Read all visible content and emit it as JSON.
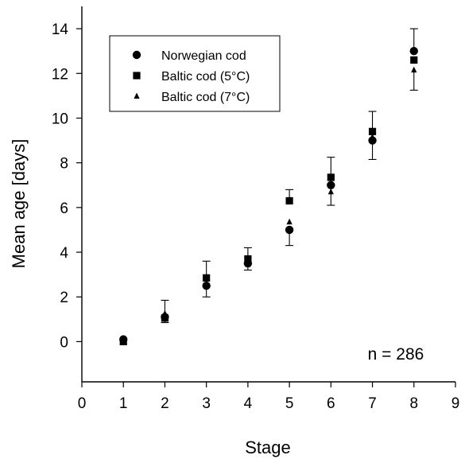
{
  "chart_data": {
    "type": "scatter",
    "xlabel": "Stage",
    "ylabel": "Mean age [days]",
    "xlim": [
      0,
      9
    ],
    "ylim": [
      -1.8,
      15
    ],
    "xticks": [
      0,
      1,
      2,
      3,
      4,
      5,
      6,
      7,
      8,
      9
    ],
    "yticks": [
      0,
      2,
      4,
      6,
      8,
      10,
      12,
      14
    ],
    "grid": false,
    "legend_position": "top-left",
    "annotation": "n = 286",
    "series": [
      {
        "name": "Norwegian cod",
        "marker": "circle",
        "x": [
          1,
          2,
          3,
          4,
          5,
          6,
          7,
          8
        ],
        "y": [
          0.1,
          1.1,
          2.5,
          3.5,
          5.0,
          7.0,
          9.0,
          13.0
        ],
        "err_low": [
          null,
          null,
          0.5,
          0.3,
          0.7,
          null,
          0.85,
          null
        ],
        "err_high": [
          null,
          null,
          null,
          null,
          null,
          null,
          null,
          1.0
        ]
      },
      {
        "name": "Baltic cod (5°C)",
        "marker": "square",
        "x": [
          1,
          2,
          3,
          4,
          5,
          6,
          7,
          8
        ],
        "y": [
          0.0,
          1.05,
          2.85,
          3.7,
          6.3,
          7.35,
          9.4,
          12.6
        ],
        "err_low": [
          null,
          null,
          null,
          null,
          null,
          null,
          null,
          null
        ],
        "err_high": [
          null,
          null,
          0.75,
          0.5,
          0.5,
          0.9,
          0.9,
          null
        ]
      },
      {
        "name": "Baltic cod (7°C)",
        "marker": "triangle",
        "x": [
          1,
          2,
          3,
          4,
          5,
          6,
          7,
          8
        ],
        "y": [
          0.05,
          1.25,
          2.6,
          3.45,
          5.35,
          6.7,
          9.15,
          12.15
        ],
        "err_low": [
          null,
          0.4,
          null,
          null,
          null,
          0.6,
          null,
          0.9
        ],
        "err_high": [
          null,
          0.6,
          null,
          null,
          null,
          null,
          null,
          null
        ]
      }
    ]
  }
}
